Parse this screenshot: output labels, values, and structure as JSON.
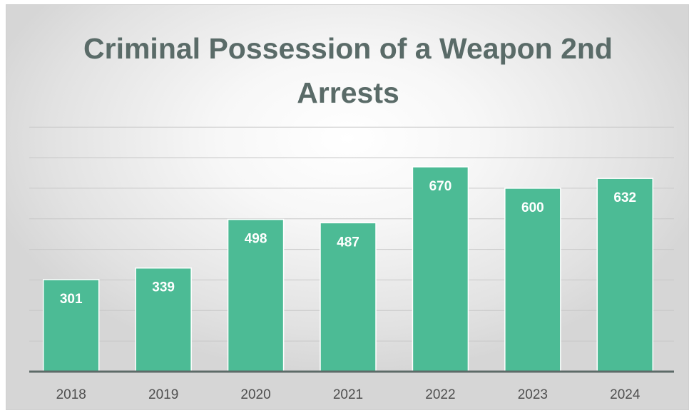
{
  "chart_data": {
    "type": "bar",
    "title_lines": [
      "Criminal Possession of a Weapon 2nd",
      "Arrests"
    ],
    "categories": [
      "2018",
      "2019",
      "2020",
      "2021",
      "2022",
      "2023",
      "2024"
    ],
    "values": [
      301,
      339,
      498,
      487,
      670,
      600,
      632
    ],
    "xlabel": "",
    "ylabel": "",
    "ylim": [
      0,
      800
    ],
    "gridlines": true,
    "legend": false,
    "data_labels": true,
    "colors": {
      "bar": "#4cbb95",
      "bar_edge": "#ffffff",
      "title": "#5a6b68",
      "grid": "#c8c8c8",
      "axis": "#5d6b68"
    }
  }
}
